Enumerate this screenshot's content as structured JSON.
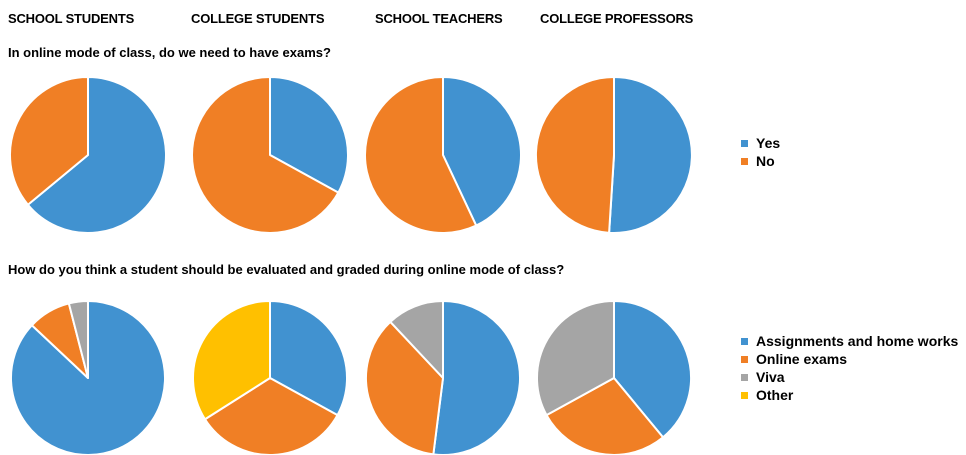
{
  "headers": [
    "SCHOOL STUDENTS",
    "COLLEGE STUDENTS",
    "SCHOOL TEACHERS",
    "COLLEGE PROFESSORS"
  ],
  "colors": {
    "blue": "#4192D0",
    "orange": "#F07F25",
    "gray": "#A5A5A5",
    "yellow": "#FFC000"
  },
  "chart_data": [
    {
      "type": "pie",
      "title": "In online mode of class, do we need to have exams?",
      "legend_position": "right",
      "categories": [
        "Yes",
        "No"
      ],
      "colors": [
        "#4192D0",
        "#F07F25"
      ],
      "series": [
        {
          "name": "SCHOOL STUDENTS",
          "values": [
            64,
            36
          ]
        },
        {
          "name": "COLLEGE STUDENTS",
          "values": [
            33,
            67
          ]
        },
        {
          "name": "SCHOOL TEACHERS",
          "values": [
            43,
            57
          ]
        },
        {
          "name": "COLLEGE PROFESSORS",
          "values": [
            51,
            49
          ]
        }
      ]
    },
    {
      "type": "pie",
      "title": "How do you think a student should be evaluated and graded during online mode of class?",
      "legend_position": "right",
      "categories": [
        "Assignments and home works",
        "Online exams",
        "Viva",
        "Other"
      ],
      "colors": [
        "#4192D0",
        "#F07F25",
        "#A5A5A5",
        "#FFC000"
      ],
      "series": [
        {
          "name": "SCHOOL STUDENTS",
          "values": [
            87,
            9,
            4,
            0
          ]
        },
        {
          "name": "COLLEGE STUDENTS",
          "values": [
            33,
            33,
            0,
            34
          ]
        },
        {
          "name": "SCHOOL TEACHERS",
          "values": [
            52,
            36,
            12,
            0
          ]
        },
        {
          "name": "COLLEGE PROFESSORS",
          "values": [
            39,
            28,
            33,
            0
          ]
        }
      ]
    }
  ]
}
